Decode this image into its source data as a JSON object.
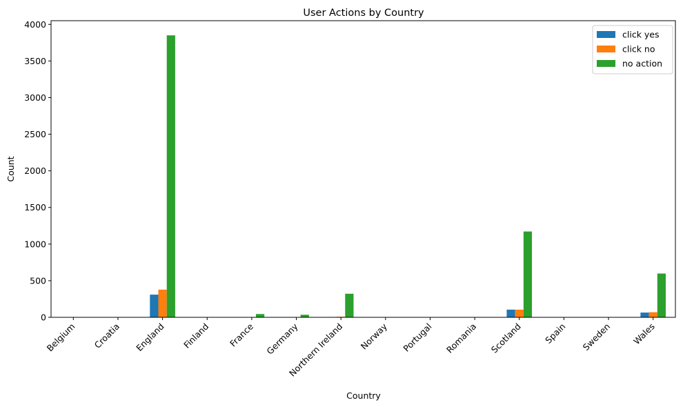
{
  "chart_data": {
    "type": "bar",
    "title": "User Actions by Country",
    "xlabel": "Country",
    "ylabel": "Count",
    "categories": [
      "Belgium",
      "Croatia",
      "England",
      "Finland",
      "France",
      "Germany",
      "Northern Ireland",
      "Norway",
      "Portugal",
      "Romania",
      "Scotland",
      "Spain",
      "Sweden",
      "Wales"
    ],
    "series": [
      {
        "name": "click yes",
        "color": "#1f77b4",
        "values": [
          0,
          0,
          310,
          0,
          2,
          1,
          5,
          0,
          0,
          0,
          105,
          0,
          0,
          65
        ]
      },
      {
        "name": "click no",
        "color": "#ff7f0e",
        "values": [
          0,
          0,
          378,
          0,
          3,
          1,
          8,
          0,
          0,
          0,
          105,
          0,
          0,
          70
        ]
      },
      {
        "name": "no action",
        "color": "#2ca02c",
        "values": [
          1,
          1,
          3850,
          1,
          45,
          35,
          322,
          1,
          1,
          1,
          1172,
          1,
          1,
          598
        ]
      }
    ],
    "ylim": [
      0,
      4050
    ],
    "yticks": [
      0,
      500,
      1000,
      1500,
      2000,
      2500,
      3000,
      3500,
      4000
    ],
    "legend_position": "top-right",
    "grid": false
  }
}
